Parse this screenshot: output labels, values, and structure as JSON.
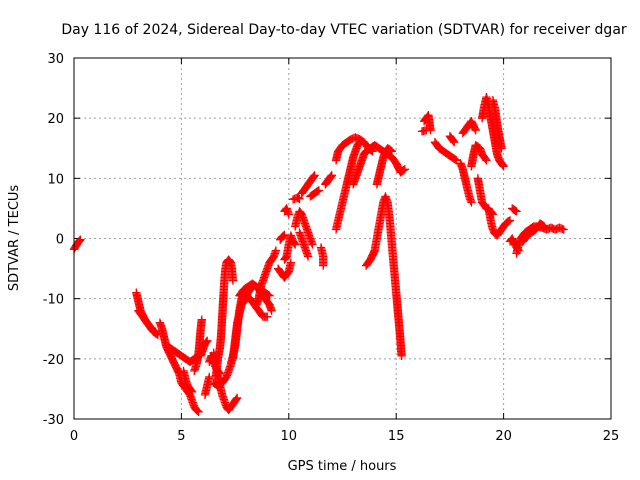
{
  "chart_data": {
    "type": "scatter",
    "title": "Day 116 of 2024, Sidereal Day-to-day VTEC variation (SDTVAR) for receiver dgar",
    "xlabel": "GPS time / hours",
    "ylabel": "SDTVAR / TECUs",
    "xlim": [
      0,
      25
    ],
    "ylim": [
      -30,
      30
    ],
    "xticks": [
      0,
      5,
      10,
      15,
      20,
      25
    ],
    "yticks": [
      -30,
      -20,
      -10,
      0,
      10,
      20,
      30
    ],
    "grid": true,
    "marker": "plus",
    "color": "#ff0000",
    "segments": [
      [
        [
          0.0,
          -1.8
        ],
        [
          0.1,
          -1.2
        ],
        [
          0.2,
          -0.6
        ],
        [
          0.3,
          -0.2
        ]
      ],
      [
        [
          2.9,
          -9.0
        ],
        [
          3.0,
          -10.5
        ],
        [
          3.1,
          -12.0
        ],
        [
          3.3,
          -13.5
        ],
        [
          3.5,
          -14.5
        ],
        [
          3.7,
          -15.5
        ],
        [
          3.9,
          -16.0
        ]
      ],
      [
        [
          3.0,
          -12.0
        ],
        [
          3.2,
          -13.0
        ],
        [
          3.4,
          -14.0
        ],
        [
          3.6,
          -15.0
        ],
        [
          3.8,
          -15.5
        ]
      ],
      [
        [
          4.0,
          -14.0
        ],
        [
          4.1,
          -15.0
        ],
        [
          4.2,
          -16.5
        ],
        [
          4.3,
          -18.0
        ],
        [
          4.5,
          -19.5
        ],
        [
          4.7,
          -21.0
        ],
        [
          4.9,
          -22.5
        ],
        [
          5.0,
          -24.0
        ],
        [
          5.2,
          -25.0
        ],
        [
          5.4,
          -26.0
        ],
        [
          5.5,
          -27.0
        ],
        [
          5.6,
          -28.0
        ],
        [
          5.7,
          -28.5
        ],
        [
          5.8,
          -28.8
        ]
      ],
      [
        [
          4.4,
          -18.0
        ],
        [
          4.6,
          -18.5
        ],
        [
          4.8,
          -19.0
        ],
        [
          5.0,
          -19.5
        ],
        [
          5.2,
          -20.0
        ],
        [
          5.4,
          -20.5
        ],
        [
          5.6,
          -20.0
        ],
        [
          5.8,
          -19.5
        ]
      ],
      [
        [
          5.6,
          -22.0
        ],
        [
          5.7,
          -21.0
        ],
        [
          5.8,
          -19.0
        ],
        [
          5.85,
          -17.0
        ],
        [
          5.9,
          -15.0
        ],
        [
          5.95,
          -13.5
        ]
      ],
      [
        [
          5.1,
          -22.0
        ],
        [
          5.2,
          -23.5
        ],
        [
          5.3,
          -24.5
        ],
        [
          5.5,
          -25.5
        ]
      ],
      [
        [
          5.9,
          -19.5
        ],
        [
          6.0,
          -18.5
        ],
        [
          6.1,
          -17.5
        ],
        [
          6.2,
          -17.0
        ]
      ],
      [
        [
          6.5,
          -19.0
        ],
        [
          6.6,
          -21.0
        ],
        [
          6.7,
          -23.0
        ],
        [
          6.8,
          -24.5
        ],
        [
          6.9,
          -26.0
        ],
        [
          7.0,
          -27.0
        ],
        [
          7.1,
          -28.0
        ],
        [
          7.2,
          -28.5
        ],
        [
          7.3,
          -28.0
        ],
        [
          7.4,
          -27.5
        ],
        [
          7.5,
          -27.0
        ],
        [
          7.6,
          -26.5
        ]
      ],
      [
        [
          6.6,
          -23.0
        ],
        [
          6.7,
          -20.0
        ],
        [
          6.8,
          -18.0
        ],
        [
          6.85,
          -16.0
        ],
        [
          6.9,
          -13.0
        ],
        [
          6.95,
          -10.0
        ],
        [
          7.0,
          -7.0
        ],
        [
          7.05,
          -5.0
        ],
        [
          7.1,
          -4.0
        ],
        [
          7.2,
          -3.5
        ],
        [
          7.3,
          -4.0
        ],
        [
          7.35,
          -5.0
        ],
        [
          7.4,
          -7.0
        ]
      ],
      [
        [
          6.5,
          -24.0
        ],
        [
          6.7,
          -24.5
        ],
        [
          6.9,
          -24.0
        ],
        [
          7.1,
          -23.0
        ],
        [
          7.3,
          -21.0
        ],
        [
          7.5,
          -18.0
        ],
        [
          7.6,
          -15.0
        ],
        [
          7.7,
          -12.0
        ],
        [
          7.8,
          -10.0
        ],
        [
          7.9,
          -9.0
        ]
      ],
      [
        [
          7.4,
          -20.0
        ],
        [
          7.5,
          -17.0
        ],
        [
          7.6,
          -14.0
        ],
        [
          7.7,
          -12.5
        ],
        [
          7.8,
          -11.0
        ],
        [
          7.9,
          -10.5
        ],
        [
          8.0,
          -10.0
        ],
        [
          8.1,
          -9.0
        ],
        [
          8.2,
          -8.5
        ],
        [
          8.3,
          -8.0
        ]
      ],
      [
        [
          6.3,
          -20.5
        ],
        [
          6.4,
          -19.5
        ],
        [
          6.6,
          -21.5
        ],
        [
          6.8,
          -22.5
        ]
      ],
      [
        [
          6.1,
          -26.0
        ],
        [
          6.3,
          -23.0
        ]
      ],
      [
        [
          7.7,
          -9.5
        ],
        [
          7.9,
          -8.5
        ],
        [
          8.1,
          -8.0
        ],
        [
          8.3,
          -7.5
        ],
        [
          8.5,
          -8.0
        ],
        [
          8.7,
          -9.0
        ],
        [
          8.9,
          -10.0
        ],
        [
          9.1,
          -11.0
        ],
        [
          9.2,
          -12.0
        ]
      ],
      [
        [
          8.0,
          -9.5
        ],
        [
          8.2,
          -10.0
        ],
        [
          8.4,
          -11.0
        ],
        [
          8.6,
          -12.0
        ],
        [
          8.8,
          -13.0
        ],
        [
          9.0,
          -13.0
        ]
      ],
      [
        [
          8.5,
          -11.0
        ],
        [
          8.6,
          -10.0
        ],
        [
          8.7,
          -8.0
        ],
        [
          8.8,
          -7.0
        ],
        [
          8.9,
          -6.0
        ],
        [
          9.0,
          -5.0
        ],
        [
          9.1,
          -4.0
        ],
        [
          9.2,
          -3.5
        ],
        [
          9.3,
          -3.0
        ],
        [
          9.4,
          -2.0
        ]
      ],
      [
        [
          9.5,
          -5.0
        ],
        [
          9.7,
          -6.0
        ],
        [
          9.8,
          -6.5
        ],
        [
          10.0,
          -5.5
        ],
        [
          10.1,
          -4.0
        ]
      ],
      [
        [
          8.6,
          -8.0
        ],
        [
          8.7,
          -8.5
        ],
        [
          8.9,
          -9.0
        ],
        [
          9.1,
          -9.5
        ]
      ],
      [
        [
          9.8,
          -3.5
        ],
        [
          9.9,
          -3.0
        ],
        [
          10.0,
          -1.0
        ],
        [
          10.1,
          0.5
        ],
        [
          10.2,
          -0.5
        ],
        [
          10.3,
          -1.0
        ]
      ],
      [
        [
          9.6,
          -0.2
        ],
        [
          9.7,
          0.3
        ],
        [
          9.8,
          0.6
        ]
      ],
      [
        [
          9.8,
          4.5
        ],
        [
          9.9,
          5.0
        ],
        [
          10.0,
          4.0
        ]
      ],
      [
        [
          10.2,
          6.5
        ],
        [
          10.4,
          6.8
        ],
        [
          10.5,
          6.6
        ]
      ],
      [
        [
          10.3,
          2.0
        ],
        [
          10.4,
          3.5
        ],
        [
          10.5,
          4.5
        ],
        [
          10.6,
          4.0
        ],
        [
          10.7,
          3.0
        ],
        [
          10.8,
          2.0
        ],
        [
          10.9,
          1.0
        ],
        [
          11.0,
          0.0
        ],
        [
          11.1,
          -1.0
        ]
      ],
      [
        [
          10.5,
          1.0
        ],
        [
          10.6,
          0.0
        ],
        [
          10.7,
          -1.0
        ],
        [
          10.8,
          -2.0
        ],
        [
          10.9,
          -3.0
        ]
      ],
      [
        [
          10.6,
          7.5
        ],
        [
          10.7,
          8.0
        ],
        [
          10.8,
          8.5
        ],
        [
          10.9,
          9.0
        ],
        [
          11.0,
          9.5
        ],
        [
          11.1,
          10.0
        ],
        [
          11.2,
          10.5
        ]
      ],
      [
        [
          11.0,
          7.0
        ],
        [
          11.2,
          7.5
        ],
        [
          11.4,
          8.0
        ]
      ],
      [
        [
          11.5,
          -1.5
        ],
        [
          11.6,
          -3.0
        ],
        [
          11.6,
          -4.5
        ]
      ],
      [
        [
          11.7,
          9.0
        ],
        [
          11.8,
          9.5
        ],
        [
          11.9,
          10.0
        ],
        [
          12.0,
          10.5
        ]
      ],
      [
        [
          12.2,
          13.0
        ],
        [
          12.3,
          14.5
        ],
        [
          12.5,
          15.5
        ],
        [
          12.7,
          16.0
        ],
        [
          12.9,
          16.5
        ],
        [
          13.1,
          16.8
        ],
        [
          13.3,
          16.5
        ],
        [
          13.5,
          16.0
        ],
        [
          13.7,
          15.0
        ],
        [
          13.9,
          14.5
        ]
      ],
      [
        [
          12.2,
          1.5
        ],
        [
          12.3,
          3.0
        ],
        [
          12.4,
          4.5
        ],
        [
          12.5,
          6.0
        ],
        [
          12.6,
          7.5
        ],
        [
          12.7,
          9.0
        ],
        [
          12.8,
          10.5
        ],
        [
          12.9,
          12.0
        ],
        [
          13.0,
          13.5
        ],
        [
          13.1,
          14.5
        ],
        [
          13.2,
          15.5
        ],
        [
          13.3,
          16.0
        ]
      ],
      [
        [
          13.0,
          9.0
        ],
        [
          13.1,
          10.0
        ],
        [
          13.2,
          11.0
        ],
        [
          13.3,
          12.0
        ],
        [
          13.4,
          13.0
        ],
        [
          13.5,
          14.0
        ],
        [
          13.6,
          14.5
        ],
        [
          13.8,
          15.0
        ],
        [
          14.0,
          15.5
        ],
        [
          14.2,
          15.0
        ],
        [
          14.4,
          14.5
        ],
        [
          14.6,
          14.0
        ],
        [
          14.8,
          13.5
        ],
        [
          15.0,
          12.5
        ],
        [
          15.2,
          11.0
        ],
        [
          15.4,
          11.5
        ]
      ],
      [
        [
          13.6,
          -4.5
        ],
        [
          13.8,
          -3.5
        ],
        [
          14.0,
          -2.0
        ],
        [
          14.1,
          0.0
        ],
        [
          14.2,
          2.0
        ],
        [
          14.3,
          4.0
        ],
        [
          14.4,
          6.0
        ],
        [
          14.5,
          7.0
        ],
        [
          14.6,
          6.0
        ],
        [
          14.7,
          3.0
        ],
        [
          14.8,
          -1.0
        ],
        [
          14.9,
          -5.0
        ],
        [
          15.0,
          -9.0
        ],
        [
          15.1,
          -13.0
        ],
        [
          15.2,
          -17.0
        ],
        [
          15.25,
          -19.5
        ]
      ],
      [
        [
          14.1,
          9.0
        ],
        [
          14.2,
          10.5
        ],
        [
          14.3,
          12.0
        ],
        [
          14.4,
          13.5
        ],
        [
          14.5,
          14.5
        ],
        [
          14.6,
          15.0
        ],
        [
          14.7,
          14.8
        ],
        [
          14.8,
          14.5
        ]
      ],
      [
        [
          16.3,
          19.5
        ],
        [
          16.5,
          20.5
        ],
        [
          16.6,
          18.0
        ]
      ],
      [
        [
          16.2,
          17.8
        ],
        [
          16.4,
          18.0
        ]
      ],
      [
        [
          16.8,
          16.0
        ],
        [
          17.0,
          15.0
        ],
        [
          17.2,
          14.5
        ],
        [
          17.4,
          14.0
        ],
        [
          17.6,
          13.5
        ],
        [
          17.8,
          13.0
        ]
      ],
      [
        [
          17.5,
          17.0
        ],
        [
          17.6,
          16.5
        ],
        [
          17.7,
          16.0
        ]
      ],
      [
        [
          18.0,
          12.5
        ],
        [
          18.1,
          11.5
        ],
        [
          18.2,
          10.0
        ],
        [
          18.3,
          8.5
        ],
        [
          18.4,
          7.0
        ],
        [
          18.5,
          6.0
        ]
      ],
      [
        [
          18.1,
          17.5
        ],
        [
          18.3,
          18.5
        ],
        [
          18.5,
          19.5
        ],
        [
          18.7,
          18.0
        ]
      ],
      [
        [
          18.5,
          12.0
        ],
        [
          18.6,
          14.0
        ],
        [
          18.7,
          15.5
        ],
        [
          18.9,
          15.0
        ],
        [
          19.0,
          14.0
        ],
        [
          19.2,
          13.0
        ]
      ],
      [
        [
          18.8,
          10.0
        ],
        [
          18.9,
          8.0
        ],
        [
          19.0,
          6.0
        ],
        [
          19.2,
          5.0
        ],
        [
          19.4,
          4.5
        ],
        [
          19.5,
          4.0
        ]
      ],
      [
        [
          19.0,
          20.0
        ],
        [
          19.1,
          22.0
        ],
        [
          19.2,
          23.5
        ],
        [
          19.3,
          22.0
        ],
        [
          19.4,
          20.0
        ],
        [
          19.5,
          18.0
        ],
        [
          19.6,
          16.0
        ],
        [
          19.7,
          14.0
        ],
        [
          19.8,
          13.0
        ],
        [
          19.9,
          12.5
        ],
        [
          20.0,
          12.0
        ]
      ],
      [
        [
          19.5,
          23.0
        ],
        [
          19.6,
          21.5
        ],
        [
          19.7,
          19.0
        ],
        [
          19.8,
          17.0
        ],
        [
          19.9,
          15.0
        ]
      ],
      [
        [
          19.3,
          5.0
        ],
        [
          19.4,
          3.0
        ],
        [
          19.5,
          1.5
        ],
        [
          19.6,
          0.8
        ],
        [
          19.7,
          0.5
        ],
        [
          19.8,
          1.0
        ],
        [
          19.9,
          1.5
        ],
        [
          20.0,
          2.0
        ],
        [
          20.1,
          2.5
        ],
        [
          20.2,
          2.8
        ],
        [
          20.3,
          3.0
        ]
      ],
      [
        [
          20.3,
          -0.5
        ],
        [
          20.4,
          0.0
        ],
        [
          20.5,
          -0.8
        ],
        [
          20.6,
          -1.5
        ],
        [
          20.7,
          -2.0
        ]
      ],
      [
        [
          20.4,
          5.0
        ],
        [
          20.6,
          4.5
        ]
      ],
      [
        [
          20.6,
          -2.5
        ],
        [
          20.7,
          -1.0
        ],
        [
          20.8,
          0.0
        ],
        [
          20.9,
          0.5
        ],
        [
          21.0,
          1.0
        ],
        [
          21.2,
          1.5
        ],
        [
          21.4,
          2.0
        ],
        [
          21.6,
          2.0
        ],
        [
          21.8,
          1.8
        ],
        [
          22.0,
          1.5
        ],
        [
          22.2,
          1.8
        ],
        [
          22.4,
          1.5
        ],
        [
          22.6,
          1.8
        ],
        [
          22.8,
          1.5
        ]
      ],
      [
        [
          20.9,
          -0.5
        ],
        [
          21.1,
          0.5
        ],
        [
          21.3,
          1.0
        ],
        [
          21.5,
          1.5
        ],
        [
          21.7,
          2.5
        ],
        [
          21.9,
          2.0
        ]
      ]
    ]
  }
}
